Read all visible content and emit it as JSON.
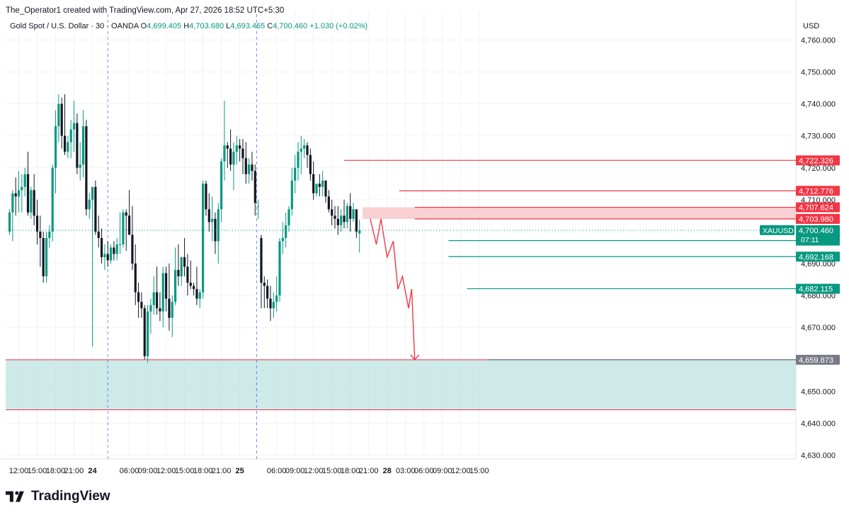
{
  "header": {
    "creator_line": "The_Operator1 created with TradingView.com, Apr 27, 2026 18:52 UTC+5:30",
    "symbol_title": "Gold Spot / U.S. Dollar · 30 · OANDA",
    "o_label": "O",
    "o_value": "4,699.405",
    "h_label": "H",
    "h_value": "4,703.680",
    "l_label": "L",
    "l_value": "4,693.465",
    "c_label": "C",
    "c_value": "4,700.460",
    "change": "+1.030 (+0.02%)"
  },
  "branding": {
    "text": "TradingView"
  },
  "colors": {
    "up": "#089981",
    "down": "#131722",
    "resistance": "#f23645",
    "support": "#089981",
    "zone_fill": "#b2dfdb",
    "supply_fill": "#f7c4c8",
    "grid": "#f0f3fa"
  },
  "chart_data": {
    "type": "candlestick",
    "title": "Gold Spot / U.S. Dollar · 30 · OANDA",
    "currency_label": "USD",
    "ylim": [
      4625,
      4767
    ],
    "y_ticks": [
      4630,
      4640,
      4650,
      4660,
      4670,
      4680,
      4690,
      4700,
      4710,
      4720,
      4730,
      4740,
      4750,
      4760
    ],
    "y_tick_labels": [
      "4,630.000",
      "4,640.000",
      "4,650.000",
      "4,660.000",
      "4,670.000",
      "4,680.000",
      "4,690.000",
      "4,700.000",
      "4,710.000",
      "4,720.000",
      "4,730.000",
      "4,740.000",
      "4,750.000",
      "4,760.000"
    ],
    "x_ticks": [
      {
        "label": "12:00",
        "i": 3
      },
      {
        "label": "15:00",
        "i": 9
      },
      {
        "label": "18:00",
        "i": 15
      },
      {
        "label": "21:00",
        "i": 21
      },
      {
        "label": "24",
        "i": 27,
        "bold": true
      },
      {
        "label": "06:00",
        "i": 39
      },
      {
        "label": "09:00",
        "i": 45
      },
      {
        "label": "12:00",
        "i": 51
      },
      {
        "label": "15:00",
        "i": 57
      },
      {
        "label": "18:00",
        "i": 63
      },
      {
        "label": "21:00",
        "i": 69
      },
      {
        "label": "25",
        "i": 75,
        "bold": true
      },
      {
        "label": "06:00",
        "i": 87
      },
      {
        "label": "09:00",
        "i": 93
      },
      {
        "label": "12:00",
        "i": 99
      },
      {
        "label": "15:00",
        "i": 105
      },
      {
        "label": "18:00",
        "i": 111
      },
      {
        "label": "21:00",
        "i": 117
      },
      {
        "label": "28",
        "i": 123,
        "bold": true
      },
      {
        "label": "03:00",
        "i": 129
      },
      {
        "label": "06:00",
        "i": 135
      },
      {
        "label": "09:00",
        "i": 141
      },
      {
        "label": "12:00",
        "i": 147
      },
      {
        "label": "15:00",
        "i": 153
      }
    ],
    "session_breaks_i": [
      32,
      80.5
    ],
    "candles": [
      {
        "i": 0,
        "o": 4700,
        "h": 4707,
        "l": 4699,
        "c": 4706
      },
      {
        "i": 1,
        "o": 4706,
        "h": 4713,
        "l": 4697,
        "c": 4712
      },
      {
        "i": 2,
        "o": 4712,
        "h": 4717,
        "l": 4705,
        "c": 4711
      },
      {
        "i": 3,
        "o": 4711,
        "h": 4719,
        "l": 4706,
        "c": 4713
      },
      {
        "i": 4,
        "o": 4713,
        "h": 4718,
        "l": 4706,
        "c": 4714
      },
      {
        "i": 5,
        "o": 4714,
        "h": 4720,
        "l": 4711,
        "c": 4718
      },
      {
        "i": 6,
        "o": 4718,
        "h": 4725,
        "l": 4705,
        "c": 4706
      },
      {
        "i": 7,
        "o": 4706,
        "h": 4714,
        "l": 4704,
        "c": 4713
      },
      {
        "i": 8,
        "o": 4713,
        "h": 4718,
        "l": 4702,
        "c": 4705
      },
      {
        "i": 9,
        "o": 4705,
        "h": 4710,
        "l": 4696,
        "c": 4700
      },
      {
        "i": 10,
        "o": 4700,
        "h": 4705,
        "l": 4689,
        "c": 4698
      },
      {
        "i": 11,
        "o": 4698,
        "h": 4700,
        "l": 4684,
        "c": 4686
      },
      {
        "i": 12,
        "o": 4686,
        "h": 4700,
        "l": 4684,
        "c": 4698
      },
      {
        "i": 13,
        "o": 4698,
        "h": 4702,
        "l": 4695,
        "c": 4700
      },
      {
        "i": 14,
        "o": 4700,
        "h": 4721,
        "l": 4697,
        "c": 4720
      },
      {
        "i": 15,
        "o": 4720,
        "h": 4738,
        "l": 4712,
        "c": 4733
      },
      {
        "i": 16,
        "o": 4733,
        "h": 4743,
        "l": 4728,
        "c": 4740
      },
      {
        "i": 17,
        "o": 4740,
        "h": 4742,
        "l": 4726,
        "c": 4730
      },
      {
        "i": 18,
        "o": 4730,
        "h": 4743,
        "l": 4724,
        "c": 4725
      },
      {
        "i": 19,
        "o": 4725,
        "h": 4730,
        "l": 4723,
        "c": 4728
      },
      {
        "i": 20,
        "o": 4728,
        "h": 4735,
        "l": 4723,
        "c": 4732
      },
      {
        "i": 21,
        "o": 4732,
        "h": 4741,
        "l": 4725,
        "c": 4734
      },
      {
        "i": 22,
        "o": 4734,
        "h": 4737,
        "l": 4718,
        "c": 4720
      },
      {
        "i": 23,
        "o": 4720,
        "h": 4728,
        "l": 4716,
        "c": 4721
      },
      {
        "i": 24,
        "o": 4721,
        "h": 4738,
        "l": 4717,
        "c": 4733
      },
      {
        "i": 25,
        "o": 4733,
        "h": 4735,
        "l": 4705,
        "c": 4707
      },
      {
        "i": 26,
        "o": 4707,
        "h": 4712,
        "l": 4704,
        "c": 4710
      },
      {
        "i": 27,
        "o": 4710,
        "h": 4714,
        "l": 4664,
        "c": 4714
      },
      {
        "i": 28,
        "o": 4714,
        "h": 4716,
        "l": 4699,
        "c": 4700
      },
      {
        "i": 29,
        "o": 4700,
        "h": 4705,
        "l": 4695,
        "c": 4698
      },
      {
        "i": 30,
        "o": 4698,
        "h": 4701,
        "l": 4690,
        "c": 4692
      },
      {
        "i": 31,
        "o": 4692,
        "h": 4696,
        "l": 4688,
        "c": 4693
      },
      {
        "i": 32,
        "o": 4693,
        "h": 4697,
        "l": 4689,
        "c": 4691
      },
      {
        "i": 33,
        "o": 4691,
        "h": 4696,
        "l": 4690,
        "c": 4695
      },
      {
        "i": 34,
        "o": 4695,
        "h": 4697,
        "l": 4691,
        "c": 4693
      },
      {
        "i": 35,
        "o": 4693,
        "h": 4698,
        "l": 4691,
        "c": 4696
      },
      {
        "i": 36,
        "o": 4696,
        "h": 4706,
        "l": 4693,
        "c": 4696
      },
      {
        "i": 37,
        "o": 4696,
        "h": 4707,
        "l": 4695,
        "c": 4706
      },
      {
        "i": 38,
        "o": 4706,
        "h": 4707,
        "l": 4694,
        "c": 4705
      },
      {
        "i": 39,
        "o": 4705,
        "h": 4713,
        "l": 4700,
        "c": 4699
      },
      {
        "i": 40,
        "o": 4699,
        "h": 4708,
        "l": 4688,
        "c": 4690
      },
      {
        "i": 41,
        "o": 4690,
        "h": 4696,
        "l": 4677,
        "c": 4681
      },
      {
        "i": 42,
        "o": 4681,
        "h": 4684,
        "l": 4673,
        "c": 4678
      },
      {
        "i": 43,
        "o": 4678,
        "h": 4681,
        "l": 4673,
        "c": 4676
      },
      {
        "i": 44,
        "o": 4676,
        "h": 4677,
        "l": 4660,
        "c": 4661
      },
      {
        "i": 45,
        "o": 4661,
        "h": 4677,
        "l": 4659,
        "c": 4675
      },
      {
        "i": 46,
        "o": 4675,
        "h": 4679,
        "l": 4668,
        "c": 4677
      },
      {
        "i": 47,
        "o": 4677,
        "h": 4686,
        "l": 4674,
        "c": 4681
      },
      {
        "i": 48,
        "o": 4681,
        "h": 4689,
        "l": 4674,
        "c": 4676
      },
      {
        "i": 49,
        "o": 4676,
        "h": 4681,
        "l": 4672,
        "c": 4675
      },
      {
        "i": 50,
        "o": 4675,
        "h": 4689,
        "l": 4670,
        "c": 4687
      },
      {
        "i": 51,
        "o": 4687,
        "h": 4689,
        "l": 4675,
        "c": 4679
      },
      {
        "i": 52,
        "o": 4679,
        "h": 4690,
        "l": 4669,
        "c": 4673
      },
      {
        "i": 53,
        "o": 4673,
        "h": 4680,
        "l": 4667,
        "c": 4678
      },
      {
        "i": 54,
        "o": 4678,
        "h": 4695,
        "l": 4677,
        "c": 4688
      },
      {
        "i": 55,
        "o": 4688,
        "h": 4696,
        "l": 4683,
        "c": 4686
      },
      {
        "i": 56,
        "o": 4686,
        "h": 4692,
        "l": 4683,
        "c": 4692
      },
      {
        "i": 57,
        "o": 4692,
        "h": 4698,
        "l": 4686,
        "c": 4689
      },
      {
        "i": 58,
        "o": 4689,
        "h": 4693,
        "l": 4680,
        "c": 4684
      },
      {
        "i": 59,
        "o": 4684,
        "h": 4691,
        "l": 4682,
        "c": 4683
      },
      {
        "i": 60,
        "o": 4683,
        "h": 4684,
        "l": 4680,
        "c": 4682
      },
      {
        "i": 61,
        "o": 4682,
        "h": 4689,
        "l": 4677,
        "c": 4679
      },
      {
        "i": 62,
        "o": 4679,
        "h": 4682,
        "l": 4676,
        "c": 4681
      },
      {
        "i": 63,
        "o": 4681,
        "h": 4716,
        "l": 4679,
        "c": 4715
      },
      {
        "i": 64,
        "o": 4715,
        "h": 4716,
        "l": 4705,
        "c": 4707
      },
      {
        "i": 65,
        "o": 4707,
        "h": 4712,
        "l": 4700,
        "c": 4703
      },
      {
        "i": 66,
        "o": 4703,
        "h": 4711,
        "l": 4697,
        "c": 4704
      },
      {
        "i": 67,
        "o": 4704,
        "h": 4706,
        "l": 4693,
        "c": 4697
      },
      {
        "i": 68,
        "o": 4697,
        "h": 4709,
        "l": 4690,
        "c": 4707
      },
      {
        "i": 69,
        "o": 4707,
        "h": 4723,
        "l": 4703,
        "c": 4722
      },
      {
        "i": 70,
        "o": 4722,
        "h": 4741,
        "l": 4716,
        "c": 4727
      },
      {
        "i": 71,
        "o": 4727,
        "h": 4728,
        "l": 4720,
        "c": 4726
      },
      {
        "i": 72,
        "o": 4726,
        "h": 4732,
        "l": 4719,
        "c": 4721
      },
      {
        "i": 73,
        "o": 4721,
        "h": 4728,
        "l": 4713,
        "c": 4725
      },
      {
        "i": 74,
        "o": 4725,
        "h": 4730,
        "l": 4721,
        "c": 4727
      },
      {
        "i": 75,
        "o": 4727,
        "h": 4729,
        "l": 4722,
        "c": 4726
      },
      {
        "i": 76,
        "o": 4726,
        "h": 4729,
        "l": 4718,
        "c": 4723
      },
      {
        "i": 77,
        "o": 4723,
        "h": 4728,
        "l": 4715,
        "c": 4718
      },
      {
        "i": 78,
        "o": 4718,
        "h": 4723,
        "l": 4715,
        "c": 4721
      },
      {
        "i": 79,
        "o": 4721,
        "h": 4725,
        "l": 4716,
        "c": 4719
      },
      {
        "i": 80,
        "o": 4719,
        "h": 4721,
        "l": 4705,
        "c": 4709
      },
      {
        "i": 81,
        "o": 4708,
        "h": 4710,
        "l": 4704,
        "c": 4708
      },
      {
        "i": 82,
        "o": 4698,
        "h": 4699,
        "l": 4676,
        "c": 4684
      },
      {
        "i": 83,
        "o": 4684,
        "h": 4686,
        "l": 4676,
        "c": 4683
      },
      {
        "i": 84,
        "o": 4683,
        "h": 4685,
        "l": 4676,
        "c": 4679
      },
      {
        "i": 85,
        "o": 4679,
        "h": 4683,
        "l": 4672,
        "c": 4676
      },
      {
        "i": 86,
        "o": 4676,
        "h": 4681,
        "l": 4673,
        "c": 4678
      },
      {
        "i": 87,
        "o": 4678,
        "h": 4686,
        "l": 4675,
        "c": 4680
      },
      {
        "i": 88,
        "o": 4680,
        "h": 4698,
        "l": 4678,
        "c": 4697
      },
      {
        "i": 89,
        "o": 4697,
        "h": 4703,
        "l": 4693,
        "c": 4698
      },
      {
        "i": 90,
        "o": 4698,
        "h": 4706,
        "l": 4695,
        "c": 4702
      },
      {
        "i": 91,
        "o": 4702,
        "h": 4708,
        "l": 4700,
        "c": 4707
      },
      {
        "i": 92,
        "o": 4707,
        "h": 4720,
        "l": 4705,
        "c": 4716
      },
      {
        "i": 93,
        "o": 4716,
        "h": 4724,
        "l": 4712,
        "c": 4720
      },
      {
        "i": 94,
        "o": 4720,
        "h": 4728,
        "l": 4716,
        "c": 4725
      },
      {
        "i": 95,
        "o": 4725,
        "h": 4730,
        "l": 4718,
        "c": 4726
      },
      {
        "i": 96,
        "o": 4726,
        "h": 4729,
        "l": 4723,
        "c": 4727
      },
      {
        "i": 97,
        "o": 4727,
        "h": 4728,
        "l": 4720,
        "c": 4724
      },
      {
        "i": 98,
        "o": 4724,
        "h": 4726,
        "l": 4716,
        "c": 4718
      },
      {
        "i": 99,
        "o": 4718,
        "h": 4722,
        "l": 4710,
        "c": 4712
      },
      {
        "i": 100,
        "o": 4712,
        "h": 4715,
        "l": 4711,
        "c": 4715
      },
      {
        "i": 101,
        "o": 4715,
        "h": 4718,
        "l": 4711,
        "c": 4714
      },
      {
        "i": 102,
        "o": 4714,
        "h": 4719,
        "l": 4711,
        "c": 4716
      },
      {
        "i": 103,
        "o": 4716,
        "h": 4716,
        "l": 4709,
        "c": 4711
      },
      {
        "i": 104,
        "o": 4711,
        "h": 4713,
        "l": 4706,
        "c": 4707
      },
      {
        "i": 105,
        "o": 4707,
        "h": 4710,
        "l": 4702,
        "c": 4705
      },
      {
        "i": 106,
        "o": 4705,
        "h": 4708,
        "l": 4701,
        "c": 4704
      },
      {
        "i": 107,
        "o": 4704,
        "h": 4708,
        "l": 4699,
        "c": 4702
      },
      {
        "i": 108,
        "o": 4702,
        "h": 4707,
        "l": 4700,
        "c": 4705
      },
      {
        "i": 109,
        "o": 4705,
        "h": 4710,
        "l": 4701,
        "c": 4703
      },
      {
        "i": 110,
        "o": 4703,
        "h": 4709,
        "l": 4701,
        "c": 4708
      },
      {
        "i": 111,
        "o": 4708,
        "h": 4712,
        "l": 4700,
        "c": 4704
      },
      {
        "i": 112,
        "o": 4704,
        "h": 4709,
        "l": 4703,
        "c": 4707
      },
      {
        "i": 113,
        "o": 4707,
        "h": 4707,
        "l": 4698,
        "c": 4700
      },
      {
        "i": 114,
        "o": 4699.405,
        "h": 4703.68,
        "l": 4693.465,
        "c": 4700.46
      }
    ],
    "levels": [
      {
        "name": "resistance-1",
        "price": 4722.326,
        "label": "4,722.326",
        "color": "#f23645",
        "from_i": 109
      },
      {
        "name": "resistance-2",
        "price": 4712.776,
        "label": "4,712.776",
        "color": "#f23645",
        "from_i": 127
      },
      {
        "name": "resistance-3",
        "price": 4707.624,
        "label": "4,707.624",
        "color": "#f23645",
        "from_i": 132
      },
      {
        "name": "resistance-4",
        "price": 4703.98,
        "label": "4,703.980",
        "color": "#f23645",
        "from_i": 132
      },
      {
        "name": "target-1",
        "price": 4697.194,
        "label": "4,697.194",
        "color": "#089981",
        "from_i": 143
      },
      {
        "name": "target-2",
        "price": 4692.168,
        "label": "4,692.168",
        "color": "#089981",
        "from_i": 143
      },
      {
        "name": "target-3",
        "price": 4682.115,
        "label": "4,682.115",
        "color": "#089981",
        "from_i": 149
      },
      {
        "name": "final-target",
        "price": 4659.873,
        "label": "4,659.873",
        "color": "#787b86",
        "from_i": 156
      }
    ],
    "demand_zone": {
      "top": 4659.873,
      "bottom": 4644.2
    },
    "supply_zone": {
      "top": 4707.624,
      "bottom": 4703.98,
      "from_i": 115
    },
    "current_price": {
      "symbol": "XAUUSD",
      "label": "4,700.460",
      "countdown": "07:11",
      "price": 4700.46
    },
    "projection": [
      {
        "i": 117.5,
        "p": 4704
      },
      {
        "i": 119.5,
        "p": 4696
      },
      {
        "i": 121,
        "p": 4704
      },
      {
        "i": 123,
        "p": 4692
      },
      {
        "i": 125,
        "p": 4697
      },
      {
        "i": 126.5,
        "p": 4682
      },
      {
        "i": 128,
        "p": 4686
      },
      {
        "i": 130,
        "p": 4676
      },
      {
        "i": 131,
        "p": 4682
      },
      {
        "i": 132,
        "p": 4659.873
      }
    ]
  }
}
